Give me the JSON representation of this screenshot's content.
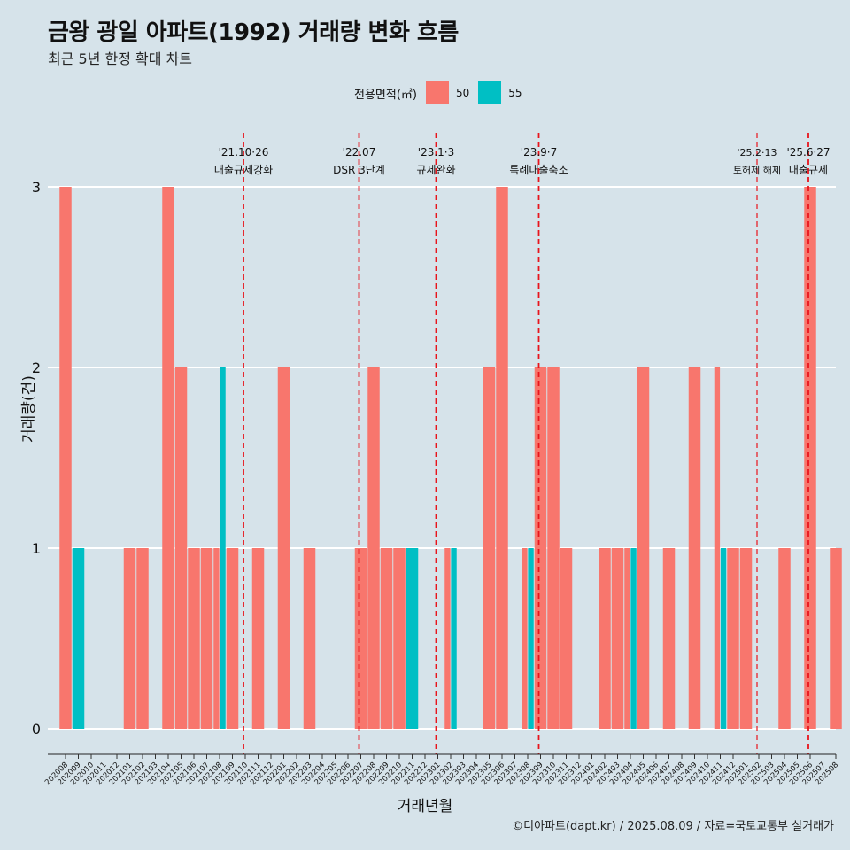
{
  "header": {
    "title": "금왕 광일 아파트(1992) 거래량 변화 흐름",
    "subtitle": "최근 5년 한정 확대 차트"
  },
  "legend": {
    "title": "전용면적(㎡)",
    "items": [
      {
        "label": "50",
        "color": "#f8766d"
      },
      {
        "label": "55",
        "color": "#00bfc4"
      }
    ]
  },
  "caption": "©디아파트(dapt.kr) / 2025.08.09 / 자료=국토교통부 실거래가",
  "chart_data": {
    "type": "bar",
    "xlabel": "거래년월",
    "ylabel": "거래량(건)",
    "ylim": [
      0,
      3
    ],
    "yticks": [
      0,
      1,
      2,
      3
    ],
    "categories": [
      "202008",
      "202009",
      "202010",
      "202011",
      "202012",
      "202101",
      "202102",
      "202103",
      "202104",
      "202105",
      "202106",
      "202107",
      "202108",
      "202109",
      "202110",
      "202111",
      "202112",
      "202201",
      "202202",
      "202203",
      "202204",
      "202205",
      "202206",
      "202207",
      "202208",
      "202209",
      "202210",
      "202211",
      "202212",
      "202301",
      "202302",
      "202303",
      "202304",
      "202305",
      "202306",
      "202307",
      "202308",
      "202309",
      "202310",
      "202311",
      "202312",
      "202401",
      "202402",
      "202403",
      "202404",
      "202405",
      "202406",
      "202407",
      "202408",
      "202409",
      "202410",
      "202411",
      "202412",
      "202501",
      "202502",
      "202503",
      "202504",
      "202505",
      "202506",
      "202507",
      "202508"
    ],
    "series": [
      {
        "name": "50",
        "color": "#f8766d",
        "values": [
          3,
          0,
          0,
          0,
          0,
          1,
          1,
          0,
          3,
          2,
          1,
          1,
          1,
          1,
          0,
          1,
          0,
          2,
          0,
          1,
          0,
          0,
          0,
          1,
          2,
          1,
          1,
          0,
          0,
          0,
          1,
          0,
          0,
          2,
          3,
          0,
          1,
          2,
          2,
          1,
          0,
          0,
          1,
          1,
          1,
          2,
          0,
          1,
          0,
          2,
          0,
          2,
          1,
          1,
          0,
          0,
          1,
          0,
          3,
          0,
          1
        ]
      },
      {
        "name": "55",
        "color": "#00bfc4",
        "values": [
          0,
          1,
          0,
          0,
          0,
          0,
          0,
          0,
          0,
          0,
          0,
          0,
          2,
          0,
          0,
          0,
          0,
          0,
          0,
          0,
          0,
          0,
          0,
          0,
          0,
          0,
          0,
          1,
          0,
          0,
          1,
          0,
          0,
          0,
          0,
          0,
          1,
          0,
          0,
          0,
          0,
          0,
          0,
          0,
          1,
          0,
          0,
          0,
          0,
          0,
          0,
          1,
          0,
          0,
          0,
          0,
          0,
          0,
          0,
          0,
          0
        ]
      }
    ],
    "annotations": [
      {
        "x": "202110",
        "date": "'21.10·26",
        "label": "대출규제강화"
      },
      {
        "x": "202207",
        "date": "'22.07",
        "label": "DSR 3단계"
      },
      {
        "x": "202301",
        "date": "'23.1·3",
        "label": "규제완화"
      },
      {
        "x": "202309",
        "date": "'23.9·7",
        "label": "특례대출축소"
      },
      {
        "x": "202502",
        "date": "'25.2·13",
        "label": "토허제 해제"
      },
      {
        "x": "202506",
        "date": "'25.6·27",
        "label": "대출규제"
      }
    ],
    "grid": true,
    "legend_position": "top"
  }
}
